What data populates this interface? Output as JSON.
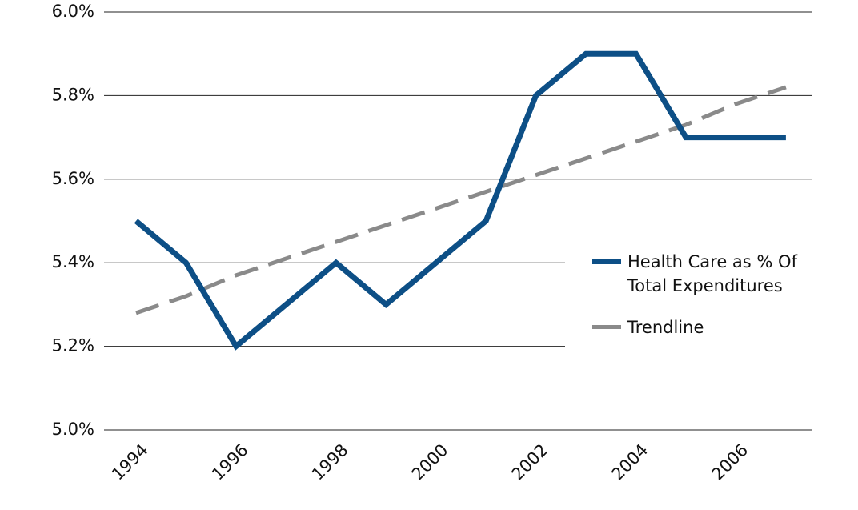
{
  "chart_data": {
    "type": "line",
    "x": [
      1994,
      1995,
      1996,
      1997,
      1998,
      1999,
      2000,
      2001,
      2002,
      2003,
      2004,
      2005,
      2006,
      2007
    ],
    "series": [
      {
        "name": "Health Care as % Of Total Expenditures",
        "color": "#0d4f86",
        "dash": false,
        "values": [
          5.5,
          5.4,
          5.2,
          5.3,
          5.4,
          5.3,
          5.4,
          5.5,
          5.8,
          5.9,
          5.9,
          5.7,
          5.7,
          5.7
        ]
      },
      {
        "name": "Trendline",
        "color": "#8a8a8a",
        "dash": true,
        "values": [
          5.28,
          5.32,
          5.37,
          5.41,
          5.45,
          5.49,
          5.53,
          5.57,
          5.61,
          5.65,
          5.69,
          5.73,
          5.78,
          5.82
        ]
      }
    ],
    "xlim": [
      1993.36,
      2007.53
    ],
    "xticks": [
      1994,
      1996,
      1998,
      2000,
      2002,
      2004,
      2006
    ],
    "ylim": [
      5.0,
      6.0
    ],
    "yticks": [
      {
        "value": 5.0,
        "label": "5.0%"
      },
      {
        "value": 5.2,
        "label": "5.2%"
      },
      {
        "value": 5.4,
        "label": "5.4%"
      },
      {
        "value": 5.6,
        "label": "5.6%"
      },
      {
        "value": 5.8,
        "label": "5.8%"
      },
      {
        "value": 6.0,
        "label": "6.0%"
      }
    ],
    "grid": true,
    "legend": "right"
  }
}
